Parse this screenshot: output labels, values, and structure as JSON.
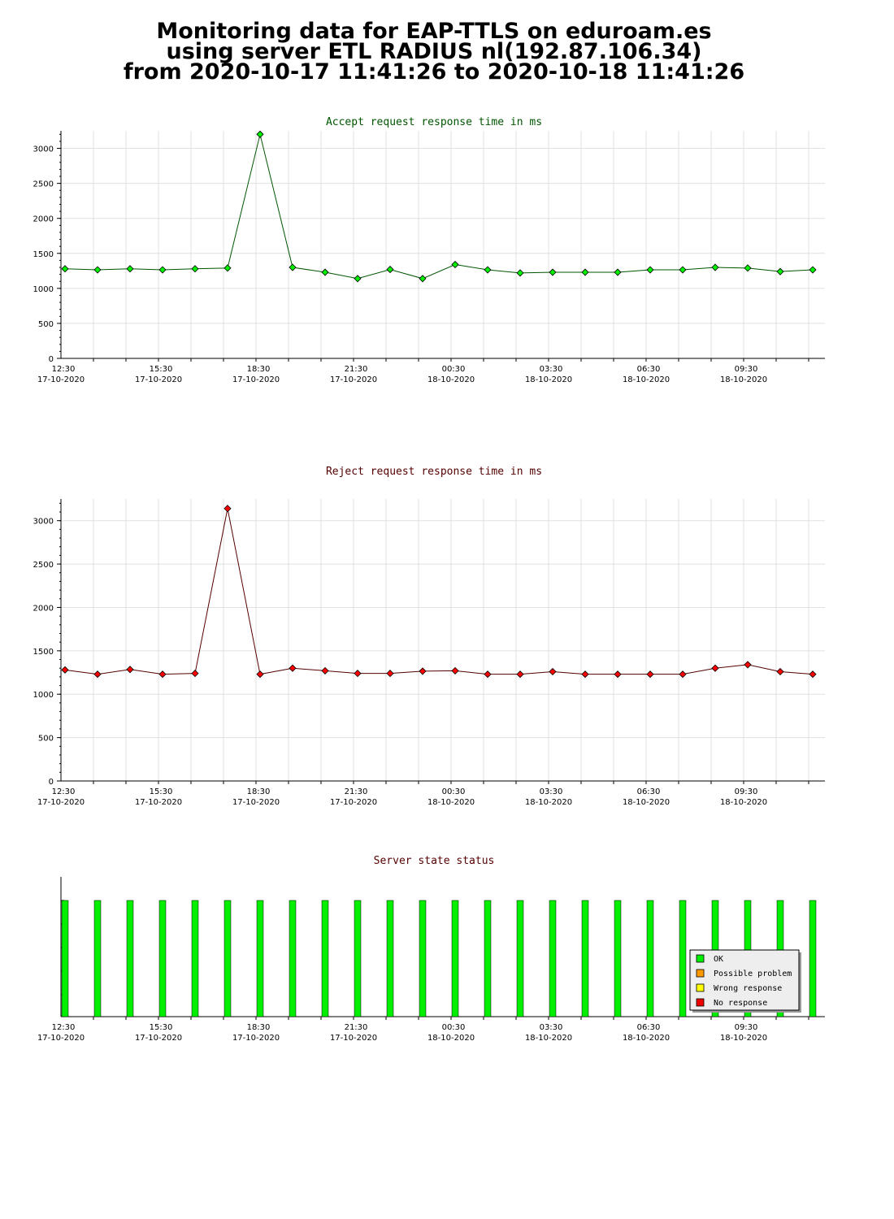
{
  "header": {
    "line1": "Monitoring data for EAP-TTLS on eduroam.es",
    "line2": "using server ETL RADIUS nl(192.87.106.34)",
    "line3": "from 2020-10-17 11:41:26 to 2020-10-18 11:41:26"
  },
  "x_ticks": [
    {
      "time": "12:30",
      "date": "17-10-2020"
    },
    {
      "time": "15:30",
      "date": "17-10-2020"
    },
    {
      "time": "18:30",
      "date": "17-10-2020"
    },
    {
      "time": "21:30",
      "date": "17-10-2020"
    },
    {
      "time": "00:30",
      "date": "18-10-2020"
    },
    {
      "time": "03:30",
      "date": "18-10-2020"
    },
    {
      "time": "06:30",
      "date": "18-10-2020"
    },
    {
      "time": "09:30",
      "date": "18-10-2020"
    }
  ],
  "colors": {
    "accept_series": "#00ee00",
    "accept_line": "#005500",
    "accept_title": "#005500",
    "reject_series": "#ff0000",
    "reject_line": "#550000",
    "reject_title": "#550000",
    "status_title": "#550000",
    "status_ok": "#00ee00",
    "possible_problem": "#ff9900",
    "wrong_response": "#ffff00",
    "no_response": "#ee0000"
  },
  "chart_data": [
    {
      "type": "line",
      "title": "Accept request response time in ms",
      "x": [
        "12:30",
        "13:30",
        "14:30",
        "15:30",
        "16:30",
        "17:30",
        "18:30",
        "19:30",
        "20:30",
        "21:30",
        "22:30",
        "23:30",
        "00:30",
        "01:30",
        "02:30",
        "03:30",
        "04:30",
        "05:30",
        "06:30",
        "07:30",
        "08:30",
        "09:30",
        "10:30",
        "11:30"
      ],
      "y_ticks": [
        0,
        500,
        1000,
        1500,
        2000,
        2500,
        3000
      ],
      "ylim": [
        0,
        3250
      ],
      "grid": true,
      "series": [
        {
          "values": [
            1280,
            1265,
            1280,
            1265,
            1280,
            1290,
            3200,
            1300,
            1230,
            1140,
            1270,
            1140,
            1340,
            1265,
            1220,
            1230,
            1230,
            1230,
            1265,
            1265,
            1300,
            1290,
            1240,
            1265
          ]
        }
      ]
    },
    {
      "type": "line",
      "title": "Reject request response time in ms",
      "x": [
        "12:30",
        "13:30",
        "14:30",
        "15:30",
        "16:30",
        "17:30",
        "18:30",
        "19:30",
        "20:30",
        "21:30",
        "22:30",
        "23:30",
        "00:30",
        "01:30",
        "02:30",
        "03:30",
        "04:30",
        "05:30",
        "06:30",
        "07:30",
        "08:30",
        "09:30",
        "10:30",
        "11:30"
      ],
      "y_ticks": [
        0,
        500,
        1000,
        1500,
        2000,
        2500,
        3000
      ],
      "ylim": [
        0,
        3250
      ],
      "grid": true,
      "series": [
        {
          "values": [
            1280,
            1230,
            1285,
            1230,
            1240,
            3140,
            1230,
            1300,
            1270,
            1240,
            1240,
            1265,
            1270,
            1230,
            1230,
            1260,
            1230,
            1230,
            1230,
            1230,
            1300,
            1340,
            1260,
            1230
          ]
        }
      ]
    },
    {
      "type": "bar",
      "title": "Server state status",
      "categories": [
        "12:30",
        "13:30",
        "14:30",
        "15:30",
        "16:30",
        "17:30",
        "18:30",
        "19:30",
        "20:30",
        "21:30",
        "22:30",
        "23:30",
        "00:30",
        "01:30",
        "02:30",
        "03:30",
        "04:30",
        "05:30",
        "06:30",
        "07:30",
        "08:30",
        "09:30",
        "10:30",
        "11:30"
      ],
      "states": [
        "OK",
        "OK",
        "OK",
        "OK",
        "OK",
        "OK",
        "OK",
        "OK",
        "OK",
        "OK",
        "OK",
        "OK",
        "OK",
        "OK",
        "OK",
        "OK",
        "OK",
        "OK",
        "OK",
        "OK",
        "OK",
        "OK",
        "OK",
        "OK"
      ],
      "legend": {
        "position": "bottom-right",
        "items": [
          {
            "label": "OK",
            "color": "#00ee00"
          },
          {
            "label": "Possible problem",
            "color": "#ff9900"
          },
          {
            "label": "Wrong response",
            "color": "#ffff00"
          },
          {
            "label": "No response",
            "color": "#ee0000"
          }
        ]
      }
    }
  ]
}
